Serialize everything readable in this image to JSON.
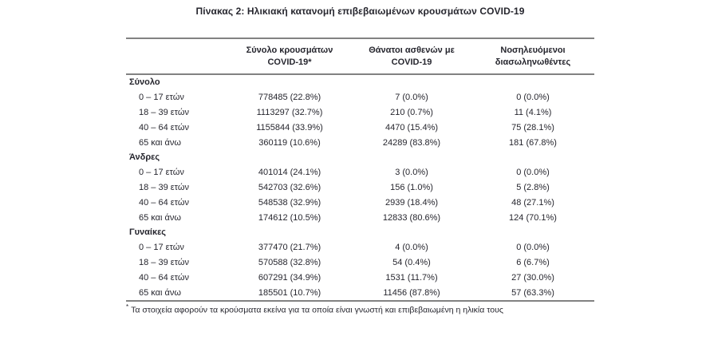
{
  "title": "Πίνακας 2: Ηλικιακή κατανομή επιβεβαιωμένων κρουσμάτων COVID-19",
  "table": {
    "columns": [
      {
        "line1": "",
        "line2": ""
      },
      {
        "line1": "Σύνολο κρουσμάτων",
        "line2": "COVID-19*"
      },
      {
        "line1": "Θάνατοι ασθενών με",
        "line2": "COVID-19"
      },
      {
        "line1": "Νοσηλευόμενοι",
        "line2": "διασωληνωθέντες"
      }
    ],
    "sections": [
      {
        "label": "Σύνολο",
        "rows": [
          {
            "label": "0 – 17 ετών",
            "cases": "778485 (22.8%)",
            "deaths": "7 (0.0%)",
            "intubated": "0 (0.0%)"
          },
          {
            "label": "18 – 39 ετών",
            "cases": "1113297 (32.7%)",
            "deaths": "210 (0.7%)",
            "intubated": "11 (4.1%)"
          },
          {
            "label": "40 – 64 ετών",
            "cases": "1155844 (33.9%)",
            "deaths": "4470 (15.4%)",
            "intubated": "75 (28.1%)"
          },
          {
            "label": "65 και άνω",
            "cases": "360119 (10.6%)",
            "deaths": "24289 (83.8%)",
            "intubated": "181 (67.8%)"
          }
        ]
      },
      {
        "label": "Άνδρες",
        "rows": [
          {
            "label": "0 – 17 ετών",
            "cases": "401014 (24.1%)",
            "deaths": "3 (0.0%)",
            "intubated": "0 (0.0%)"
          },
          {
            "label": "18 – 39 ετών",
            "cases": "542703 (32.6%)",
            "deaths": "156 (1.0%)",
            "intubated": "5 (2.8%)"
          },
          {
            "label": "40 – 64 ετών",
            "cases": "548538 (32.9%)",
            "deaths": "2939 (18.4%)",
            "intubated": "48 (27.1%)"
          },
          {
            "label": "65 και άνω",
            "cases": "174612 (10.5%)",
            "deaths": "12833 (80.6%)",
            "intubated": "124 (70.1%)"
          }
        ]
      },
      {
        "label": "Γυναίκες",
        "rows": [
          {
            "label": "0 – 17 ετών",
            "cases": "377470 (21.7%)",
            "deaths": "4 (0.0%)",
            "intubated": "0 (0.0%)"
          },
          {
            "label": "18 – 39 ετών",
            "cases": "570588 (32.8%)",
            "deaths": "54 (0.4%)",
            "intubated": "6 (6.7%)"
          },
          {
            "label": "40 – 64 ετών",
            "cases": "607291 (34.9%)",
            "deaths": "1531 (11.7%)",
            "intubated": "27 (30.0%)"
          },
          {
            "label": "65 και άνω",
            "cases": "185501 (10.7%)",
            "deaths": "11456 (87.8%)",
            "intubated": "57 (63.3%)"
          }
        ]
      }
    ]
  },
  "footnote": {
    "marker": "*",
    "text": "Τα στοιχεία αφορούν τα κρούσματα εκείνα για τα οποία είναι γνωστή και επιβεβαιωμένη η ηλικία τους"
  },
  "colors": {
    "text": "#26262e",
    "rule": "#828282"
  }
}
